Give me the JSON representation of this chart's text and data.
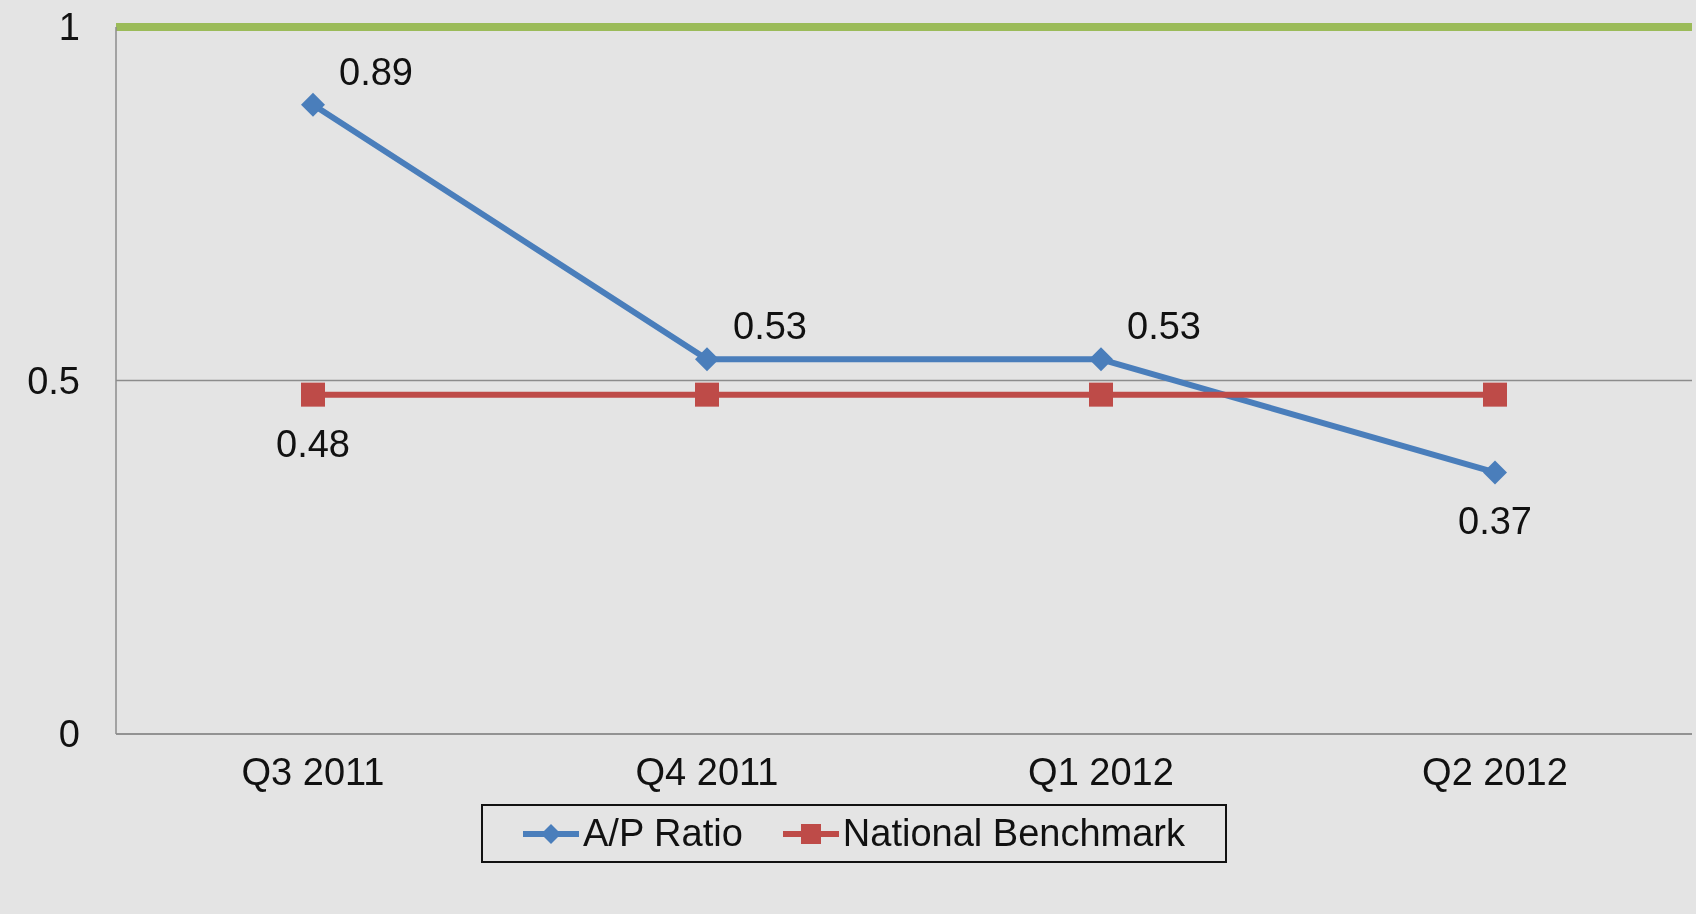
{
  "chart_data": {
    "type": "line",
    "categories": [
      "Q3 2011",
      "Q4 2011",
      "Q1 2012",
      "Q2 2012"
    ],
    "series": [
      {
        "name": "A/P Ratio",
        "color": "#4a7ebb",
        "marker": "diamond",
        "values": [
          0.89,
          0.53,
          0.53,
          0.37
        ],
        "value_labels": [
          "0.89",
          "0.53",
          "0.53",
          "0.37"
        ]
      },
      {
        "name": "National Benchmark",
        "color": "#be4b48",
        "marker": "square",
        "values": [
          0.48,
          0.48,
          0.48,
          0.48
        ],
        "value_labels": [
          "0.48",
          null,
          null,
          null
        ]
      }
    ],
    "ylim": [
      0,
      1
    ],
    "yticks": [
      0,
      0.5,
      1
    ],
    "grid": "y",
    "legend": "bottom",
    "ref_lines": [
      {
        "axis": "y",
        "value": 1,
        "color": "#9bbb59"
      }
    ]
  }
}
